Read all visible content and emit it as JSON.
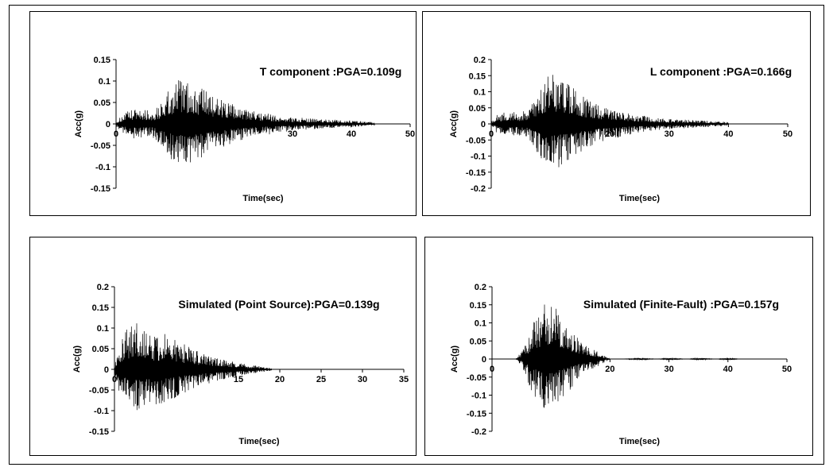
{
  "chart_data": [
    {
      "type": "line",
      "title": "T component :PGA=0.109g",
      "xlabel": "Time(sec)",
      "ylabel": "Acc(g)",
      "xlim": [
        0,
        50
      ],
      "ylim": [
        -0.15,
        0.15
      ],
      "xticks": [
        0,
        10,
        20,
        30,
        40,
        50
      ],
      "xtick_labels": [
        "0",
        "",
        "",
        "30",
        "40",
        "50"
      ],
      "yticks": [
        0.15,
        0.1,
        0.05,
        0,
        -0.05,
        -0.1,
        -0.15
      ],
      "ytick_labels": [
        "0.15",
        "0.1",
        "0.05",
        "0",
        "-0.05",
        "-0.1",
        "-0.15"
      ],
      "grid": false,
      "legend": "none",
      "series": [
        {
          "line_color": "#000000",
          "x": [
            0,
            1,
            2,
            3,
            4,
            5,
            6,
            7,
            8,
            9,
            10,
            11,
            12,
            13,
            14,
            15,
            16,
            17,
            18,
            19,
            20,
            21,
            22,
            23,
            24,
            25,
            26,
            27,
            28,
            29,
            30,
            31,
            32,
            33,
            34,
            35,
            36,
            37,
            38,
            39,
            40,
            41,
            42,
            43,
            44
          ],
          "y_max": [
            0.005,
            0.02,
            0.03,
            0.035,
            0.04,
            0.035,
            0.03,
            0.04,
            0.06,
            0.08,
            0.1,
            0.109,
            0.1,
            0.09,
            0.085,
            0.08,
            0.07,
            0.065,
            0.06,
            0.05,
            0.045,
            0.04,
            0.035,
            0.03,
            0.03,
            0.025,
            0.025,
            0.02,
            0.02,
            0.018,
            0.016,
            0.015,
            0.014,
            0.013,
            0.012,
            0.011,
            0.01,
            0.01,
            0.009,
            0.009,
            0.008,
            0.007,
            0.006,
            0.005,
            0.004
          ],
          "y_min": [
            -0.005,
            -0.02,
            -0.03,
            -0.035,
            -0.035,
            -0.03,
            -0.03,
            -0.04,
            -0.06,
            -0.085,
            -0.1,
            -0.105,
            -0.1,
            -0.09,
            -0.085,
            -0.08,
            -0.07,
            -0.065,
            -0.06,
            -0.05,
            -0.045,
            -0.04,
            -0.035,
            -0.03,
            -0.03,
            -0.025,
            -0.025,
            -0.02,
            -0.02,
            -0.018,
            -0.016,
            -0.015,
            -0.014,
            -0.013,
            -0.012,
            -0.011,
            -0.01,
            -0.01,
            -0.009,
            -0.009,
            -0.008,
            -0.007,
            -0.006,
            -0.005,
            -0.004
          ]
        }
      ]
    },
    {
      "type": "line",
      "title": "L component :PGA=0.166g",
      "xlabel": "Time(sec)",
      "ylabel": "Acc(g)",
      "xlim": [
        0,
        50
      ],
      "ylim": [
        -0.2,
        0.2
      ],
      "xticks": [
        0,
        10,
        20,
        30,
        40,
        50
      ],
      "xtick_labels": [
        "0",
        "",
        "20",
        "30",
        "40",
        "50"
      ],
      "yticks": [
        0.2,
        0.15,
        0.1,
        0.05,
        0,
        -0.05,
        -0.1,
        -0.15,
        -0.2
      ],
      "ytick_labels": [
        "0.2",
        "0.15",
        "0.1",
        "0.05",
        "0",
        "-0.05",
        "-0.1",
        "-0.15",
        "-0.2"
      ],
      "grid": false,
      "legend": "none",
      "series": [
        {
          "line_color": "#000000",
          "x": [
            0,
            1,
            2,
            3,
            4,
            5,
            6,
            7,
            8,
            9,
            10,
            11,
            12,
            13,
            14,
            15,
            16,
            17,
            18,
            19,
            20,
            21,
            22,
            23,
            24,
            25,
            26,
            27,
            28,
            29,
            30,
            31,
            32,
            33,
            34,
            35,
            36,
            37,
            38,
            39,
            40
          ],
          "y_max": [
            0.01,
            0.03,
            0.035,
            0.04,
            0.04,
            0.035,
            0.045,
            0.07,
            0.1,
            0.14,
            0.155,
            0.15,
            0.145,
            0.13,
            0.11,
            0.09,
            0.08,
            0.07,
            0.06,
            0.055,
            0.05,
            0.045,
            0.04,
            0.035,
            0.03,
            0.028,
            0.025,
            0.022,
            0.02,
            0.018,
            0.016,
            0.015,
            0.014,
            0.013,
            0.012,
            0.011,
            0.01,
            0.009,
            0.008,
            0.007,
            0.005
          ],
          "y_min": [
            -0.01,
            -0.03,
            -0.035,
            -0.035,
            -0.04,
            -0.035,
            -0.045,
            -0.07,
            -0.11,
            -0.166,
            -0.15,
            -0.14,
            -0.13,
            -0.12,
            -0.1,
            -0.09,
            -0.08,
            -0.07,
            -0.06,
            -0.055,
            -0.05,
            -0.045,
            -0.04,
            -0.035,
            -0.03,
            -0.028,
            -0.025,
            -0.022,
            -0.02,
            -0.018,
            -0.016,
            -0.015,
            -0.014,
            -0.013,
            -0.012,
            -0.011,
            -0.01,
            -0.009,
            -0.008,
            -0.007,
            -0.005
          ]
        }
      ]
    },
    {
      "type": "line",
      "title": "Simulated (Point Source):PGA=0.139g",
      "xlabel": "Time(sec)",
      "ylabel": "Acc(g)",
      "xlim": [
        0,
        35
      ],
      "ylim": [
        -0.15,
        0.2
      ],
      "xticks": [
        0,
        5,
        10,
        15,
        20,
        25,
        30,
        35
      ],
      "xtick_labels": [
        "0",
        "",
        "",
        "15",
        "20",
        "25",
        "30",
        "35"
      ],
      "yticks": [
        0.2,
        0.15,
        0.1,
        0.05,
        0,
        -0.05,
        -0.1,
        -0.15
      ],
      "ytick_labels": [
        "0.2",
        "0.15",
        "0.1",
        "0.05",
        "0",
        "-0.05",
        "-0.1",
        "-0.15"
      ],
      "grid": false,
      "legend": "none",
      "series": [
        {
          "line_color": "#000000",
          "x": [
            0,
            0.5,
            1,
            1.5,
            2,
            2.5,
            3,
            3.5,
            4,
            4.5,
            5,
            5.5,
            6,
            6.5,
            7,
            7.5,
            8,
            8.5,
            9,
            9.5,
            10,
            10.5,
            11,
            11.5,
            12,
            12.5,
            13,
            13.5,
            14,
            14.5,
            15,
            15.5,
            16,
            16.5,
            17,
            17.5,
            18,
            18.5,
            19
          ],
          "y_max": [
            0.01,
            0.06,
            0.08,
            0.1,
            0.11,
            0.139,
            0.12,
            0.1,
            0.09,
            0.085,
            0.08,
            0.085,
            0.09,
            0.085,
            0.08,
            0.07,
            0.065,
            0.06,
            0.055,
            0.05,
            0.045,
            0.04,
            0.035,
            0.035,
            0.03,
            0.03,
            0.025,
            0.025,
            0.02,
            0.02,
            0.015,
            0.015,
            0.012,
            0.01,
            0.01,
            0.008,
            0.006,
            0.005,
            0.003
          ],
          "y_min": [
            -0.01,
            -0.05,
            -0.07,
            -0.08,
            -0.09,
            -0.1,
            -0.1,
            -0.09,
            -0.085,
            -0.08,
            -0.085,
            -0.09,
            -0.085,
            -0.08,
            -0.075,
            -0.07,
            -0.065,
            -0.06,
            -0.055,
            -0.05,
            -0.045,
            -0.04,
            -0.035,
            -0.035,
            -0.03,
            -0.03,
            -0.025,
            -0.025,
            -0.02,
            -0.02,
            -0.015,
            -0.015,
            -0.012,
            -0.01,
            -0.01,
            -0.008,
            -0.006,
            -0.005,
            -0.003
          ]
        }
      ]
    },
    {
      "type": "line",
      "title": "Simulated (Finite-Fault) :PGA=0.157g",
      "xlabel": "Time(sec)",
      "ylabel": "Acc(g)",
      "xlim": [
        0,
        50
      ],
      "ylim": [
        -0.2,
        0.2
      ],
      "xticks": [
        0,
        10,
        20,
        30,
        40,
        50
      ],
      "xtick_labels": [
        "0",
        "",
        "20",
        "30",
        "40",
        "50"
      ],
      "yticks": [
        0.2,
        0.15,
        0.1,
        0.05,
        0,
        -0.05,
        -0.1,
        -0.15,
        -0.2
      ],
      "ytick_labels": [
        "0.2",
        "0.15",
        "0.1",
        "0.05",
        "0",
        "-0.05",
        "-0.1",
        "-0.15",
        "-0.2"
      ],
      "grid": false,
      "legend": "none",
      "series": [
        {
          "line_color": "#000000",
          "x": [
            0,
            1,
            2,
            3,
            4,
            5,
            6,
            7,
            8,
            9,
            10,
            11,
            12,
            13,
            14,
            15,
            16,
            17,
            18,
            19,
            20,
            22,
            25,
            28,
            30,
            33,
            35,
            38,
            40,
            42,
            45,
            48,
            50
          ],
          "y_max": [
            0,
            0,
            0,
            0,
            0,
            0.02,
            0.05,
            0.1,
            0.13,
            0.157,
            0.15,
            0.14,
            0.12,
            0.1,
            0.07,
            0.05,
            0.04,
            0.03,
            0.02,
            0.01,
            0,
            0,
            0.003,
            0,
            0.003,
            0,
            0.003,
            0,
            0.003,
            0,
            0,
            0,
            0
          ],
          "y_min": [
            0,
            0,
            0,
            0,
            0,
            -0.02,
            -0.06,
            -0.1,
            -0.13,
            -0.15,
            -0.14,
            -0.13,
            -0.11,
            -0.09,
            -0.07,
            -0.05,
            -0.04,
            -0.03,
            -0.02,
            -0.01,
            0,
            0,
            -0.003,
            0,
            -0.003,
            0,
            -0.003,
            0,
            -0.003,
            0,
            0,
            0,
            0
          ]
        }
      ]
    }
  ]
}
